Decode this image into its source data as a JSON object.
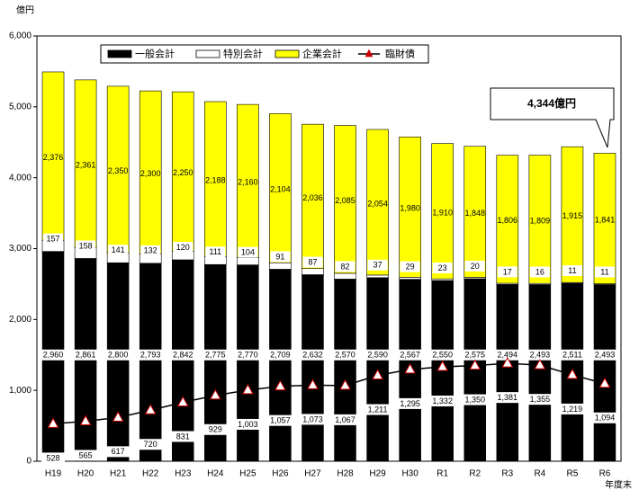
{
  "chart_data": {
    "type": "bar",
    "stacked": true,
    "y_unit_label": "億円",
    "x_unit_label": "年度末",
    "categories": [
      "H19",
      "H20",
      "H21",
      "H22",
      "H23",
      "H24",
      "H25",
      "H26",
      "H27",
      "H28",
      "H29",
      "H30",
      "R1",
      "R2",
      "R3",
      "R4",
      "R5",
      "R6"
    ],
    "ylim": [
      0,
      6000
    ],
    "yticks": [
      "0",
      "1,000",
      "2,000",
      "3,000",
      "4,000",
      "5,000",
      "6,000"
    ],
    "grid": false,
    "legend_position": "top",
    "series": [
      {
        "name": "一般会計",
        "type": "bar",
        "color": "#000000",
        "values": [
          2960,
          2861,
          2800,
          2793,
          2842,
          2775,
          2770,
          2709,
          2632,
          2570,
          2590,
          2567,
          2550,
          2575,
          2494,
          2493,
          2511,
          2493
        ],
        "labels": [
          "2,960",
          "2,861",
          "2,800",
          "2,793",
          "2,842",
          "2,775",
          "2,770",
          "2,709",
          "2,632",
          "2,570",
          "2,590",
          "2,567",
          "2,550",
          "2,575",
          "2,494",
          "2,493",
          "2,511",
          "2,493"
        ]
      },
      {
        "name": "特別会計",
        "type": "bar",
        "color": "#ffffff",
        "values": [
          157,
          158,
          141,
          132,
          120,
          111,
          104,
          91,
          87,
          82,
          37,
          29,
          23,
          20,
          17,
          16,
          11,
          11
        ],
        "labels": [
          "157",
          "158",
          "141",
          "132",
          "120",
          "111",
          "104",
          "91",
          "87",
          "82",
          "37",
          "29",
          "23",
          "20",
          "17",
          "16",
          "11",
          "11"
        ]
      },
      {
        "name": "企業会計",
        "type": "bar",
        "color": "#ffff00",
        "values": [
          2376,
          2361,
          2350,
          2300,
          2250,
          2188,
          2160,
          2104,
          2036,
          2085,
          2054,
          1980,
          1910,
          1848,
          1806,
          1809,
          1915,
          1841
        ],
        "labels": [
          "2,376",
          "2,361",
          "2,350",
          "2,300",
          "2,250",
          "2,188",
          "2,160",
          "2,104",
          "2,036",
          "2,085",
          "2,054",
          "1,980",
          "1,910",
          "1,848",
          "1,806",
          "1,809",
          "1,915",
          "1,841"
        ]
      },
      {
        "name": "臨財債",
        "type": "line",
        "color": "#000000",
        "marker_color": "#cc0000",
        "marker": "triangle",
        "values": [
          528,
          565,
          617,
          720,
          831,
          929,
          1003,
          1057,
          1073,
          1067,
          1211,
          1295,
          1332,
          1350,
          1381,
          1355,
          1219,
          1094
        ],
        "labels": [
          "528",
          "565",
          "617",
          "720",
          "831",
          "929",
          "1,003",
          "1,057",
          "1,073",
          "1,067",
          "1,211",
          "1,295",
          "1,332",
          "1,350",
          "1,381",
          "1,355",
          "1,219",
          "1,094"
        ]
      }
    ],
    "callout": "4,344億円"
  }
}
